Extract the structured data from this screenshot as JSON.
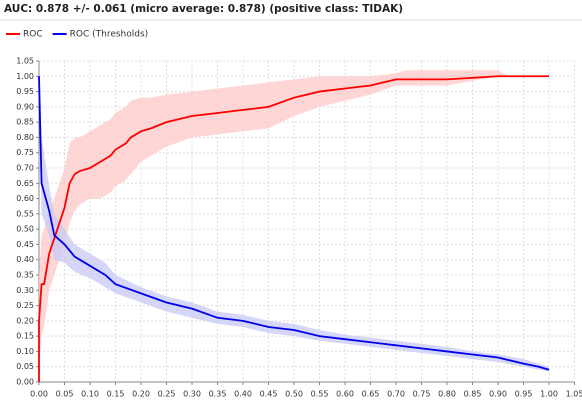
{
  "chart_data": {
    "type": "line",
    "title": "AUC: 0.878 +/- 0.061 (micro average: 0.878) (positive class: TIDAK)",
    "series": [
      {
        "name": "ROC",
        "color": "#ff0000",
        "band_color": "#ffc8c8",
        "x": [
          0,
          0,
          0.005,
          0.01,
          0.02,
          0.03,
          0.04,
          0.05,
          0.06,
          0.07,
          0.08,
          0.1,
          0.12,
          0.14,
          0.15,
          0.17,
          0.18,
          0.2,
          0.22,
          0.25,
          0.3,
          0.35,
          0.4,
          0.45,
          0.5,
          0.55,
          0.6,
          0.65,
          0.7,
          0.72,
          0.8,
          0.9,
          0.92,
          1.0
        ],
        "values": [
          0,
          0.2,
          0.32,
          0.32,
          0.42,
          0.47,
          0.52,
          0.57,
          0.65,
          0.68,
          0.69,
          0.7,
          0.72,
          0.74,
          0.76,
          0.78,
          0.8,
          0.82,
          0.83,
          0.85,
          0.87,
          0.88,
          0.89,
          0.9,
          0.93,
          0.95,
          0.96,
          0.97,
          0.99,
          0.99,
          0.99,
          1.0,
          1.0,
          1.0
        ],
        "lower": [
          0,
          0.05,
          0.15,
          0.18,
          0.3,
          0.35,
          0.4,
          0.45,
          0.52,
          0.56,
          0.58,
          0.6,
          0.6,
          0.62,
          0.64,
          0.66,
          0.68,
          0.72,
          0.74,
          0.77,
          0.8,
          0.81,
          0.82,
          0.83,
          0.87,
          0.9,
          0.92,
          0.94,
          0.97,
          0.97,
          0.97,
          1.0,
          1.0,
          1.0
        ],
        "upper": [
          0,
          0.35,
          0.48,
          0.5,
          0.56,
          0.6,
          0.65,
          0.7,
          0.78,
          0.8,
          0.8,
          0.82,
          0.84,
          0.86,
          0.88,
          0.9,
          0.92,
          0.93,
          0.93,
          0.94,
          0.95,
          0.96,
          0.97,
          0.98,
          0.99,
          1.0,
          1.0,
          1.0,
          1.01,
          1.02,
          1.02,
          1.02,
          1.0,
          1.0
        ]
      },
      {
        "name": "ROC (Thresholds)",
        "color": "#0000ee",
        "band_color": "#c8c8f5",
        "x": [
          0,
          0.005,
          0.02,
          0.03,
          0.05,
          0.07,
          0.1,
          0.13,
          0.15,
          0.2,
          0.25,
          0.3,
          0.35,
          0.4,
          0.45,
          0.5,
          0.55,
          0.6,
          0.65,
          0.7,
          0.75,
          0.8,
          0.85,
          0.9,
          0.95,
          0.98,
          1.0
        ],
        "values": [
          1.0,
          0.65,
          0.56,
          0.48,
          0.45,
          0.41,
          0.38,
          0.35,
          0.32,
          0.29,
          0.26,
          0.24,
          0.21,
          0.2,
          0.18,
          0.17,
          0.15,
          0.14,
          0.13,
          0.12,
          0.11,
          0.1,
          0.09,
          0.08,
          0.06,
          0.05,
          0.04
        ],
        "lower": [
          0.95,
          0.55,
          0.48,
          0.4,
          0.39,
          0.36,
          0.34,
          0.31,
          0.29,
          0.26,
          0.23,
          0.21,
          0.19,
          0.18,
          0.16,
          0.15,
          0.135,
          0.125,
          0.115,
          0.105,
          0.095,
          0.085,
          0.075,
          0.065,
          0.05,
          0.04,
          0.035
        ],
        "upper": [
          1.0,
          0.8,
          0.64,
          0.55,
          0.5,
          0.45,
          0.42,
          0.39,
          0.35,
          0.31,
          0.28,
          0.26,
          0.23,
          0.22,
          0.2,
          0.19,
          0.17,
          0.155,
          0.145,
          0.135,
          0.125,
          0.115,
          0.1,
          0.09,
          0.075,
          0.06,
          0.05
        ]
      }
    ],
    "xlim": [
      0,
      1.05
    ],
    "ylim": [
      0,
      1.05
    ],
    "xticks": [
      {
        "value": 0,
        "label": "0.00"
      },
      {
        "value": 0.05,
        "label": "0.05"
      },
      {
        "value": 0.1,
        "label": "0.10"
      },
      {
        "value": 0.15,
        "label": "0.15"
      },
      {
        "value": 0.2,
        "label": "0.20"
      },
      {
        "value": 0.25,
        "label": "0.25"
      },
      {
        "value": 0.3,
        "label": "0.30"
      },
      {
        "value": 0.35,
        "label": "0.35"
      },
      {
        "value": 0.4,
        "label": "0.40"
      },
      {
        "value": 0.45,
        "label": "0.45"
      },
      {
        "value": 0.5,
        "label": "0.50"
      },
      {
        "value": 0.55,
        "label": "0.55"
      },
      {
        "value": 0.6,
        "label": "0.60"
      },
      {
        "value": 0.65,
        "label": "0.65"
      },
      {
        "value": 0.7,
        "label": "0.70"
      },
      {
        "value": 0.75,
        "label": "0.75"
      },
      {
        "value": 0.8,
        "label": "0.80"
      },
      {
        "value": 0.85,
        "label": "0.85"
      },
      {
        "value": 0.9,
        "label": "0.90"
      },
      {
        "value": 0.95,
        "label": "0.95"
      },
      {
        "value": 1.0,
        "label": "1.00"
      },
      {
        "value": 1.05,
        "label": "1.05"
      }
    ],
    "yticks": [
      {
        "value": 0,
        "label": "0.00"
      },
      {
        "value": 0.05,
        "label": "0.05"
      },
      {
        "value": 0.1,
        "label": "0.10"
      },
      {
        "value": 0.15,
        "label": "0.15"
      },
      {
        "value": 0.2,
        "label": "0.20"
      },
      {
        "value": 0.25,
        "label": "0.25"
      },
      {
        "value": 0.3,
        "label": "0.30"
      },
      {
        "value": 0.35,
        "label": "0.35"
      },
      {
        "value": 0.4,
        "label": "0.40"
      },
      {
        "value": 0.45,
        "label": "0.45"
      },
      {
        "value": 0.5,
        "label": "0.50"
      },
      {
        "value": 0.55,
        "label": "0.55"
      },
      {
        "value": 0.6,
        "label": "0.60"
      },
      {
        "value": 0.65,
        "label": "0.65"
      },
      {
        "value": 0.7,
        "label": "0.70"
      },
      {
        "value": 0.75,
        "label": "0.75"
      },
      {
        "value": 0.8,
        "label": "0.80"
      },
      {
        "value": 0.85,
        "label": "0.85"
      },
      {
        "value": 0.9,
        "label": "0.90"
      },
      {
        "value": 0.95,
        "label": "0.95"
      },
      {
        "value": 1.0,
        "label": "1.00"
      },
      {
        "value": 1.05,
        "label": "1.05"
      }
    ],
    "grid": true,
    "legend": "top-left"
  }
}
